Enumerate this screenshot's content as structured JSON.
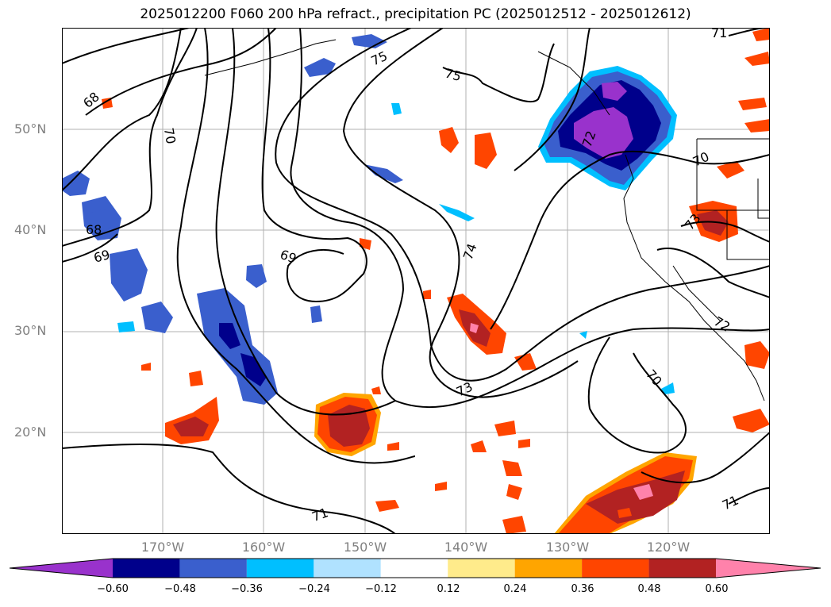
{
  "title": "2025012200 F060 200 hPa refract., precipitation PC (2025012512 - 2025012612)",
  "lat_labels": [
    "50°N",
    "40°N",
    "30°N",
    "20°N"
  ],
  "lon_labels": [
    "170°W",
    "160°W",
    "150°W",
    "140°W",
    "130°W",
    "120°W"
  ],
  "contour_labels": [
    "68",
    "70",
    "75",
    "75",
    "71",
    "68",
    "69",
    "69",
    "74",
    "73",
    "70",
    "73",
    "72",
    "71",
    "70",
    "71",
    "72"
  ],
  "colorbar": {
    "ticks": [
      "−0.60",
      "−0.48",
      "−0.36",
      "−0.24",
      "−0.12",
      "0.12",
      "0.24",
      "0.36",
      "0.48",
      "0.60"
    ],
    "colors": [
      "#9932cc",
      "#00008b",
      "#3a5fcd",
      "#00bfff",
      "#b0e2ff",
      "#ffffff",
      "#ffeb8b",
      "#ffa500",
      "#ff4500",
      "#b22222",
      "#ff82ab"
    ]
  }
}
